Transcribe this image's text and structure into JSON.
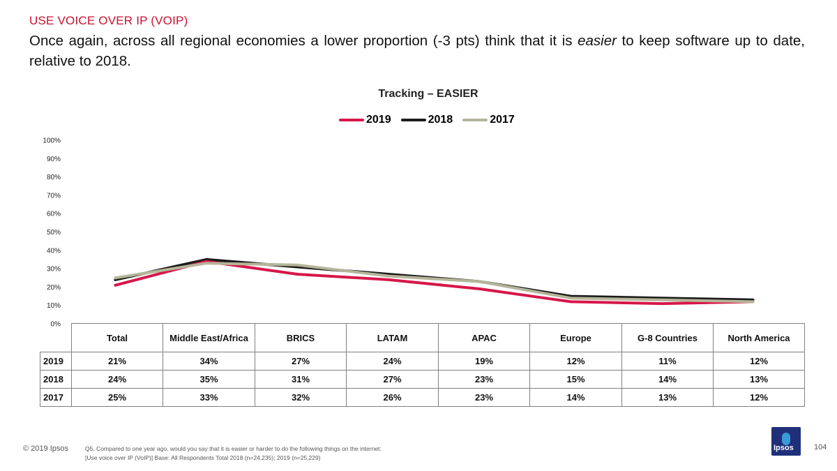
{
  "header": {
    "section": "USE VOICE OVER IP (VOIP)",
    "headline_before": "Once again, across all regional economies a lower proportion (-3 pts) think that it is ",
    "headline_emphasis": "easier",
    "headline_after": " to keep software up to date, relative to 2018."
  },
  "chart_data": {
    "type": "line",
    "title": "Tracking – EASIER",
    "categories": [
      "Total",
      "Middle East/Africa",
      "BRICS",
      "LATAM",
      "APAC",
      "Europe",
      "G-8 Countries",
      "North America"
    ],
    "series": [
      {
        "name": "2019",
        "color": "#d6174a",
        "values": [
          21,
          34,
          27,
          24,
          19,
          12,
          11,
          12
        ],
        "labels": [
          "21%",
          "34%",
          "27%",
          "24%",
          "19%",
          "12%",
          "11%",
          "12%"
        ]
      },
      {
        "name": "2018",
        "color": "#1c1c1c",
        "values": [
          24,
          35,
          31,
          27,
          23,
          15,
          14,
          13
        ],
        "labels": [
          "24%",
          "35%",
          "31%",
          "27%",
          "23%",
          "15%",
          "14%",
          "13%"
        ]
      },
      {
        "name": "2017",
        "color": "#b5b59a",
        "values": [
          25,
          33,
          32,
          26,
          23,
          14,
          13,
          12
        ],
        "labels": [
          "25%",
          "33%",
          "32%",
          "26%",
          "23%",
          "14%",
          "13%",
          "12%"
        ]
      }
    ],
    "yticks": [
      "0%",
      "10%",
      "20%",
      "30%",
      "40%",
      "50%",
      "60%",
      "70%",
      "80%",
      "90%",
      "100%"
    ],
    "ylim": [
      0,
      100
    ],
    "xlabel": "",
    "ylabel": "",
    "legend_position": "top-center"
  },
  "table": {
    "headers": [
      "Total",
      "Middle East/Africa",
      "BRICS",
      "LATAM",
      "APAC",
      "Europe",
      "G-8 Countries",
      "North America"
    ]
  },
  "footer": {
    "copyright": "© 2019 Ipsos",
    "footnote_line1": "Q5. Compared to one year ago, would you say that it is easier or harder to do the following things on the internet:",
    "footnote_line2": "[Use voice over IP (VoIP)] Base: All Respondents Total 2018 (n=24,235); 2019 (n=25,229)",
    "logo_text": "Ipsos",
    "page_number": "104"
  }
}
